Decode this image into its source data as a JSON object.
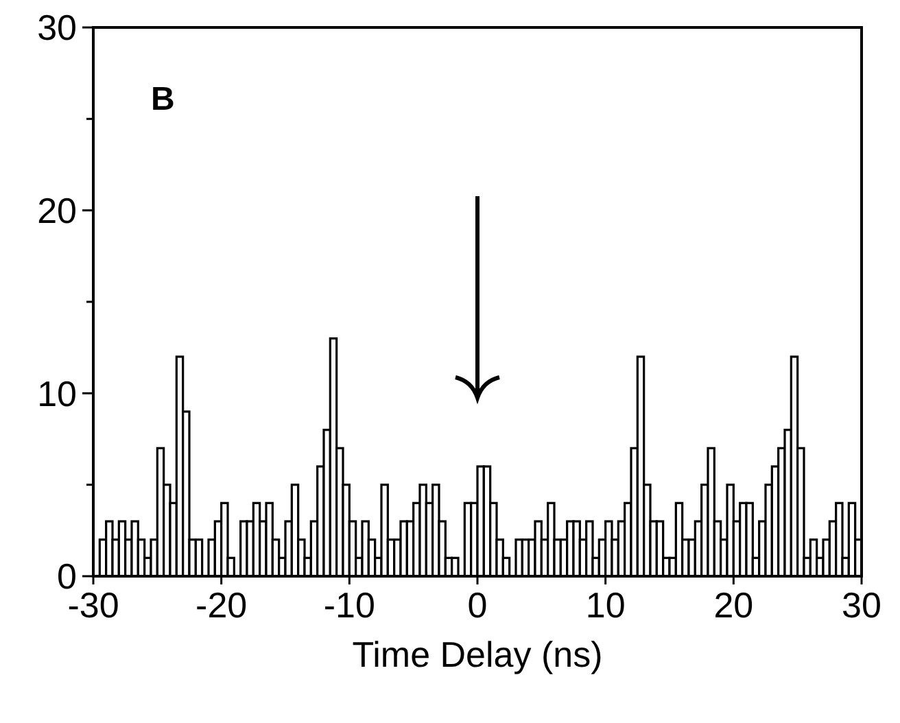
{
  "chart_data": {
    "type": "histogram",
    "xlabel": "Time Delay (ns)",
    "annotations": [
      "B"
    ],
    "color": "#000000",
    "bins": [
      -30,
      -29.5,
      -29,
      -28.5,
      -28,
      -27.5,
      -27,
      -26.5,
      -26,
      -25.5,
      -25,
      -24.5,
      -24,
      -23.5,
      -23,
      -22.5,
      -22,
      -21.5,
      -21,
      -20.5,
      -20,
      -19.5,
      -19,
      -18.5,
      -18,
      -17.5,
      -17,
      -16.5,
      -16,
      -15.5,
      -15,
      -14.5,
      -14,
      -13.5,
      -13,
      -12.5,
      -12,
      -11.5,
      -11,
      -10.5,
      -10,
      -9.5,
      -9,
      -8.5,
      -8,
      -7.5,
      -7,
      -6.5,
      -6,
      -5.5,
      -5,
      -4.5,
      -4,
      -3.5,
      -3,
      -2.5,
      -2,
      -1.5,
      -1,
      -0.5,
      0,
      0.5,
      1,
      1.5,
      2,
      2.5,
      3,
      3.5,
      4,
      4.5,
      5,
      5.5,
      6,
      6.5,
      7,
      7.5,
      8,
      8.5,
      9,
      9.5,
      10,
      10.5,
      11,
      11.5,
      12,
      12.5,
      13,
      13.5,
      14,
      14.5,
      15,
      15.5,
      16,
      16.5,
      17,
      17.5,
      18,
      18.5,
      19,
      19.5,
      20,
      20.5,
      21,
      21.5,
      22,
      22.5,
      23,
      23.5,
      24,
      24.5,
      25,
      25.5,
      26,
      26.5,
      27,
      27.5,
      28,
      28.5,
      29,
      29.5,
      30
    ],
    "values": [
      0,
      2,
      3,
      2,
      3,
      2,
      3,
      2,
      1,
      2,
      7,
      5,
      4,
      12,
      9,
      2,
      2,
      0,
      2,
      3,
      4,
      1,
      0,
      3,
      3,
      4,
      3,
      4,
      2,
      1,
      3,
      5,
      2,
      1,
      3,
      6,
      8,
      13,
      7,
      5,
      3,
      1,
      3,
      2,
      1,
      5,
      2,
      2,
      3,
      3,
      4,
      5,
      4,
      5,
      3,
      1,
      1,
      0,
      4,
      4,
      6,
      6,
      4,
      2,
      1,
      0,
      2,
      2,
      2,
      3,
      2,
      4,
      2,
      2,
      3,
      3,
      2,
      3,
      1,
      2,
      3,
      2,
      3,
      4,
      7,
      12,
      5,
      3,
      3,
      1,
      1,
      4,
      2,
      2,
      3,
      5,
      7,
      3,
      2,
      5,
      3,
      4,
      4,
      1,
      3,
      5,
      6,
      7,
      8,
      12,
      7,
      1,
      2,
      1,
      2,
      3,
      4,
      1,
      4,
      2
    ],
    "xlim": [
      -30,
      30
    ],
    "xticks": [
      -30,
      -20,
      -10,
      0,
      10,
      20,
      30
    ],
    "ylim": [
      0,
      30
    ],
    "yticks": [
      0,
      {
        "value": 5,
        "label": null
      },
      10,
      {
        "value": 15,
        "label": null
      },
      20,
      {
        "value": 25,
        "label": null
      },
      30
    ],
    "grid": false
  }
}
